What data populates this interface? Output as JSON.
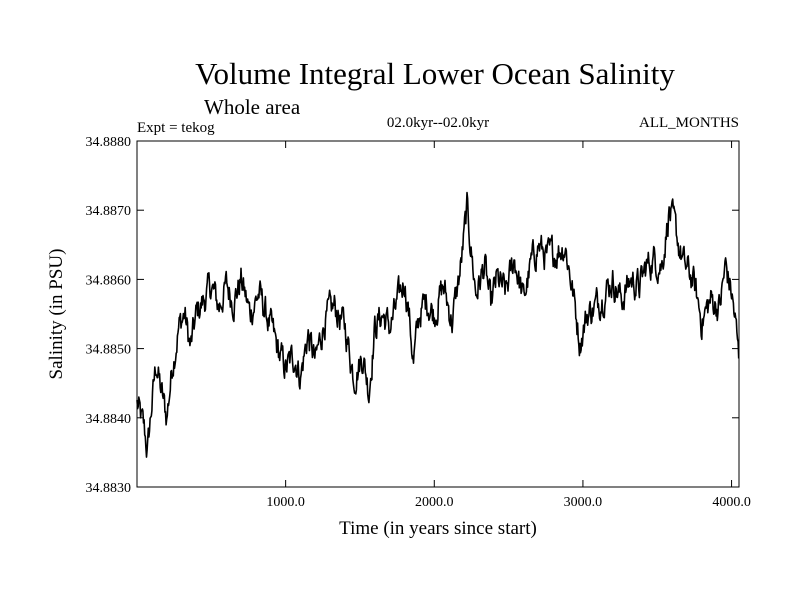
{
  "chart_data": {
    "type": "line",
    "title": "Volume Integral Lower Ocean Salinity",
    "subtitle": "Whole area",
    "expt_label": "Expt = tekog",
    "period_label": "02.0kyr--02.0kyr",
    "months_label": "ALL_MONTHS",
    "xlabel": "Time (in years since start)",
    "ylabel": "Salinity (in PSU)",
    "xlim": [
      0,
      4050
    ],
    "ylim": [
      34.883,
      34.888
    ],
    "x_ticks": [
      1000,
      2000,
      3000,
      4000
    ],
    "x_tick_labels": [
      "1000.0",
      "2000.0",
      "3000.0",
      "4000.0"
    ],
    "y_ticks": [
      34.883,
      34.884,
      34.885,
      34.886,
      34.887,
      34.888
    ],
    "y_tick_labels": [
      "34.8830",
      "34.8840",
      "34.8850",
      "34.8860",
      "34.8870",
      "34.8880"
    ],
    "series": [
      {
        "name": "Lower ocean salinity",
        "x": [
          0,
          50,
          70,
          100,
          130,
          160,
          200,
          240,
          280,
          320,
          360,
          400,
          450,
          500,
          550,
          600,
          650,
          700,
          760,
          820,
          900,
          960,
          1000,
          1060,
          1100,
          1150,
          1200,
          1260,
          1330,
          1400,
          1460,
          1520,
          1560,
          1600,
          1650,
          1700,
          1760,
          1800,
          1830,
          1860,
          1900,
          1950,
          2000,
          2060,
          2120,
          2180,
          2220,
          2240,
          2280,
          2340,
          2380,
          2420,
          2480,
          2540,
          2600,
          2650,
          2700,
          2760,
          2820,
          2880,
          2920,
          2980,
          3030,
          3080,
          3140,
          3200,
          3260,
          3320,
          3380,
          3430,
          3480,
          3530,
          3580,
          3620,
          3680,
          3740,
          3800,
          3860,
          3920,
          3960,
          4000,
          4030,
          4050
        ],
        "y": [
          34.8842,
          34.8838,
          34.8835,
          34.8842,
          34.8848,
          34.8844,
          34.884,
          34.8848,
          34.8853,
          34.8855,
          34.885,
          34.8855,
          34.8857,
          34.8859,
          34.8856,
          34.8859,
          34.8857,
          34.886,
          34.8855,
          34.8858,
          34.8853,
          34.8849,
          34.8847,
          34.8849,
          34.8846,
          34.8852,
          34.8848,
          34.8854,
          34.8856,
          34.8853,
          34.8846,
          34.8849,
          34.8844,
          34.8853,
          34.8855,
          34.8853,
          34.8857,
          34.886,
          34.8855,
          34.8848,
          34.8855,
          34.8857,
          34.8855,
          34.8859,
          34.8854,
          34.8862,
          34.887,
          34.8866,
          34.8858,
          34.8862,
          34.8856,
          34.886,
          34.8858,
          34.8863,
          34.8857,
          34.8862,
          34.8865,
          34.8863,
          34.8864,
          34.8865,
          34.886,
          34.8851,
          34.8855,
          34.8856,
          34.8858,
          34.886,
          34.8857,
          34.886,
          34.8859,
          34.8862,
          34.8863,
          34.8862,
          34.887,
          34.8867,
          34.8862,
          34.886,
          34.8854,
          34.8857,
          34.8856,
          34.8862,
          34.8858,
          34.8853,
          34.8848
        ]
      }
    ]
  }
}
